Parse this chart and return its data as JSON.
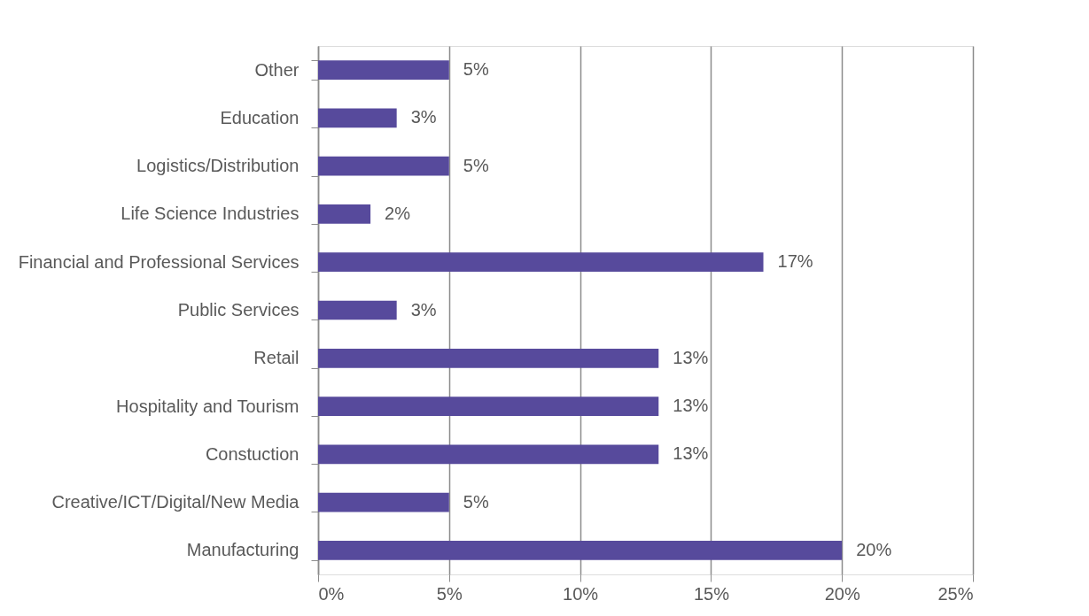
{
  "chart_data": {
    "type": "bar",
    "orientation": "horizontal",
    "categories": [
      "Other",
      "Education",
      "Logistics/Distribution",
      "Life Science Industries",
      "Financial and Professional Services",
      "Public Services",
      "Retail",
      "Hospitality and Tourism",
      "Constuction",
      "Creative/ICT/Digital/New Media",
      "Manufacturing"
    ],
    "values": [
      5,
      3,
      5,
      2,
      17,
      3,
      13,
      13,
      13,
      5,
      20
    ],
    "value_labels": [
      "5%",
      "3%",
      "5%",
      "2%",
      "17%",
      "3%",
      "13%",
      "13%",
      "13%",
      "5%",
      "20%"
    ],
    "color": "#574a9c",
    "xlim": [
      0,
      25
    ],
    "xticks": [
      {
        "value": 0,
        "label": "0%"
      },
      {
        "value": 5,
        "label": "5%"
      },
      {
        "value": 10,
        "label": "10%"
      },
      {
        "value": 15,
        "label": "15%"
      },
      {
        "value": 20,
        "label": "20%"
      },
      {
        "value": 25,
        "label": "25%"
      }
    ],
    "grid": "x"
  }
}
